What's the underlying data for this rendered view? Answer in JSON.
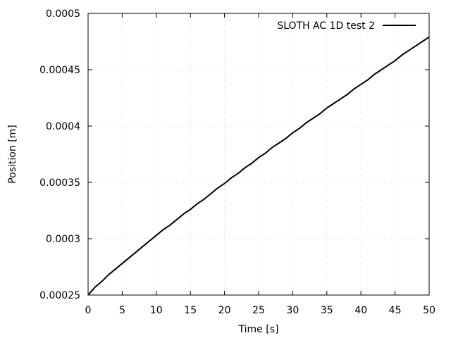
{
  "chart_data": {
    "type": "line",
    "title": "",
    "xlabel": "Time [s]",
    "ylabel": "Position [m]",
    "xlim": [
      0,
      50
    ],
    "ylim": [
      0.00025,
      0.0005
    ],
    "x_ticks": [
      0,
      5,
      10,
      15,
      20,
      25,
      30,
      35,
      40,
      45,
      50
    ],
    "x_tick_labels": [
      "0",
      "5",
      "10",
      "15",
      "20",
      "25",
      "30",
      "35",
      "40",
      "45",
      "50"
    ],
    "y_ticks": [
      0.00025,
      0.0003,
      0.00035,
      0.0004,
      0.00045,
      0.0005
    ],
    "y_tick_labels": [
      "0.00025",
      "0.0003",
      "0.00035",
      "0.0004",
      "0.00045",
      "0.0005"
    ],
    "grid": true,
    "legend_position": "top-right",
    "series": [
      {
        "name": "SLOTH AC 1D test 2",
        "color": "#000000",
        "x": [
          0,
          1,
          2,
          3,
          4,
          5,
          6,
          7,
          8,
          9,
          10,
          11,
          12,
          13,
          14,
          15,
          16,
          17,
          18,
          19,
          20,
          21,
          22,
          23,
          24,
          25,
          26,
          27,
          28,
          29,
          30,
          31,
          32,
          33,
          34,
          35,
          36,
          37,
          38,
          39,
          40,
          41,
          42,
          43,
          44,
          45,
          46,
          47,
          48,
          49,
          50
        ],
        "values": [
          0.00025,
          0.000257,
          0.000262,
          0.000268,
          0.000273,
          0.000278,
          0.000283,
          0.000288,
          0.000293,
          0.000298,
          0.000303,
          0.000308,
          0.000312,
          0.000317,
          0.000322,
          0.000326,
          0.000331,
          0.000335,
          0.00034,
          0.000345,
          0.000349,
          0.000354,
          0.000358,
          0.000363,
          0.000367,
          0.000372,
          0.000376,
          0.000381,
          0.000385,
          0.000389,
          0.000394,
          0.000398,
          0.000403,
          0.000407,
          0.000411,
          0.000416,
          0.00042,
          0.000424,
          0.000428,
          0.000433,
          0.000437,
          0.000441,
          0.000446,
          0.00045,
          0.000454,
          0.000458,
          0.000463,
          0.000467,
          0.000471,
          0.000475,
          0.000479
        ]
      }
    ]
  }
}
